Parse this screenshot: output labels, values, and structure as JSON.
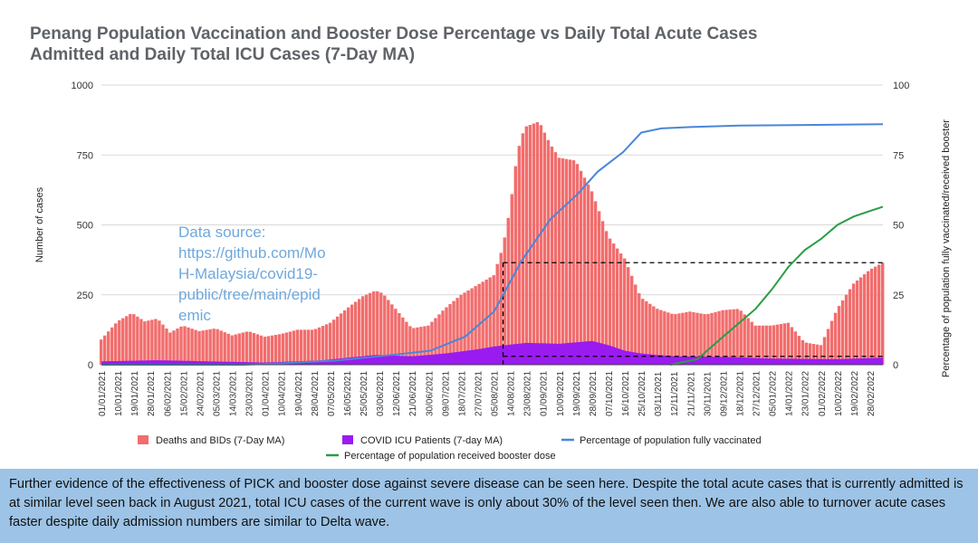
{
  "chart_data": {
    "type": "bar+line",
    "title_lines": [
      "Penang Population Vaccination and Booster Dose Percentage vs Daily Total Acute Cases",
      "Admitted and Daily Total ICU Cases (7-Day MA)"
    ],
    "ylabel_left": "Number of cases",
    "ylabel_right": "Percentage of population fully vaccinated/received booster",
    "ylim_left": [
      0,
      1000
    ],
    "ylim_right": [
      0,
      100
    ],
    "yticks_left": [
      "0",
      "250",
      "500",
      "750",
      "1000"
    ],
    "yticks_right": [
      "0",
      "25",
      "50",
      "75",
      "100"
    ],
    "x_start": "2021-01-01",
    "x_end": "2022-03-07",
    "xtick_labels": [
      "01/01/2021",
      "10/01/2021",
      "19/01/2021",
      "28/01/2021",
      "06/02/2021",
      "15/02/2021",
      "24/02/2021",
      "05/03/2021",
      "14/03/2021",
      "23/03/2021",
      "01/04/2021",
      "10/04/2021",
      "19/04/2021",
      "28/04/2021",
      "07/05/2021",
      "16/05/2021",
      "25/05/2021",
      "03/06/2021",
      "12/06/2021",
      "21/06/2021",
      "30/06/2021",
      "09/07/2021",
      "18/07/2021",
      "27/07/2021",
      "05/08/2021",
      "14/08/2021",
      "23/08/2021",
      "01/09/2021",
      "10/09/2021",
      "19/09/2021",
      "28/09/2021",
      "07/10/2021",
      "16/10/2021",
      "25/10/2021",
      "03/11/2021",
      "12/11/2021",
      "21/11/2021",
      "30/11/2021",
      "09/12/2021",
      "18/12/2021",
      "27/12/2021",
      "05/01/2022",
      "14/01/2022",
      "23/01/2022",
      "01/02/2022",
      "10/02/2022",
      "19/02/2022",
      "28/02/2022"
    ],
    "series": [
      {
        "name": "Deaths and BIDs (7-Day MA)",
        "kind": "bar",
        "axis": "left",
        "color": "#f26d6d",
        "points": [
          [
            "2021-01-01",
            90
          ],
          [
            "2021-01-10",
            155
          ],
          [
            "2021-01-18",
            185
          ],
          [
            "2021-01-25",
            155
          ],
          [
            "2021-02-01",
            165
          ],
          [
            "2021-02-08",
            115
          ],
          [
            "2021-02-15",
            140
          ],
          [
            "2021-02-24",
            120
          ],
          [
            "2021-03-05",
            130
          ],
          [
            "2021-03-14",
            105
          ],
          [
            "2021-03-23",
            120
          ],
          [
            "2021-04-01",
            100
          ],
          [
            "2021-04-10",
            110
          ],
          [
            "2021-04-19",
            125
          ],
          [
            "2021-04-28",
            125
          ],
          [
            "2021-05-07",
            150
          ],
          [
            "2021-05-16",
            200
          ],
          [
            "2021-05-25",
            245
          ],
          [
            "2021-06-01",
            265
          ],
          [
            "2021-06-05",
            255
          ],
          [
            "2021-06-12",
            200
          ],
          [
            "2021-06-21",
            130
          ],
          [
            "2021-06-30",
            140
          ],
          [
            "2021-07-09",
            200
          ],
          [
            "2021-07-18",
            250
          ],
          [
            "2021-07-27",
            285
          ],
          [
            "2021-08-05",
            320
          ],
          [
            "2021-08-10",
            420
          ],
          [
            "2021-08-14",
            560
          ],
          [
            "2021-08-18",
            760
          ],
          [
            "2021-08-22",
            850
          ],
          [
            "2021-08-30",
            870
          ],
          [
            "2021-09-05",
            790
          ],
          [
            "2021-09-10",
            740
          ],
          [
            "2021-09-19",
            730
          ],
          [
            "2021-09-28",
            620
          ],
          [
            "2021-10-07",
            460
          ],
          [
            "2021-10-16",
            380
          ],
          [
            "2021-10-25",
            240
          ],
          [
            "2021-11-03",
            200
          ],
          [
            "2021-11-12",
            180
          ],
          [
            "2021-11-21",
            190
          ],
          [
            "2021-11-30",
            180
          ],
          [
            "2021-12-09",
            195
          ],
          [
            "2021-12-18",
            200
          ],
          [
            "2021-12-27",
            140
          ],
          [
            "2022-01-05",
            140
          ],
          [
            "2022-01-14",
            150
          ],
          [
            "2022-01-23",
            80
          ],
          [
            "2022-02-01",
            70
          ],
          [
            "2022-02-10",
            200
          ],
          [
            "2022-02-19",
            290
          ],
          [
            "2022-02-28",
            340
          ],
          [
            "2022-03-07",
            365
          ]
        ]
      },
      {
        "name": "COVID ICU Patients (7-day MA)",
        "kind": "area",
        "axis": "left",
        "color": "#9a1bf0",
        "points": [
          [
            "2021-01-01",
            12
          ],
          [
            "2021-02-01",
            16
          ],
          [
            "2021-03-01",
            12
          ],
          [
            "2021-04-01",
            8
          ],
          [
            "2021-05-01",
            15
          ],
          [
            "2021-06-01",
            35
          ],
          [
            "2021-06-21",
            30
          ],
          [
            "2021-07-09",
            40
          ],
          [
            "2021-07-27",
            55
          ],
          [
            "2021-08-05",
            65
          ],
          [
            "2021-08-14",
            72
          ],
          [
            "2021-08-23",
            78
          ],
          [
            "2021-09-10",
            75
          ],
          [
            "2021-09-28",
            85
          ],
          [
            "2021-10-07",
            70
          ],
          [
            "2021-10-16",
            50
          ],
          [
            "2021-10-25",
            40
          ],
          [
            "2021-11-12",
            30
          ],
          [
            "2021-12-09",
            28
          ],
          [
            "2022-01-05",
            22
          ],
          [
            "2022-02-10",
            20
          ],
          [
            "2022-03-07",
            25
          ]
        ]
      },
      {
        "name": "Percentage of population fully vaccinated",
        "kind": "line",
        "axis": "right",
        "color": "#4a86d8",
        "points": [
          [
            "2021-01-01",
            0
          ],
          [
            "2021-03-20",
            0
          ],
          [
            "2021-04-10",
            0.5
          ],
          [
            "2021-05-10",
            1.5
          ],
          [
            "2021-06-10",
            3.5
          ],
          [
            "2021-07-01",
            5
          ],
          [
            "2021-07-20",
            10
          ],
          [
            "2021-08-05",
            19
          ],
          [
            "2021-08-20",
            37
          ],
          [
            "2021-09-05",
            52
          ],
          [
            "2021-09-20",
            61
          ],
          [
            "2021-10-01",
            69
          ],
          [
            "2021-10-15",
            76
          ],
          [
            "2021-10-25",
            83
          ],
          [
            "2021-11-05",
            84.5
          ],
          [
            "2021-11-21",
            85
          ],
          [
            "2021-12-18",
            85.5
          ],
          [
            "2022-03-07",
            86
          ]
        ]
      },
      {
        "name": "Percentage of population received booster dose",
        "kind": "line",
        "axis": "right",
        "color": "#2a9d45",
        "points": [
          [
            "2021-11-10",
            0
          ],
          [
            "2021-11-25",
            2
          ],
          [
            "2021-12-09",
            10
          ],
          [
            "2021-12-18",
            15
          ],
          [
            "2021-12-27",
            20
          ],
          [
            "2022-01-05",
            27
          ],
          [
            "2022-01-14",
            35
          ],
          [
            "2022-01-23",
            41
          ],
          [
            "2022-02-01",
            45
          ],
          [
            "2022-02-10",
            50
          ],
          [
            "2022-02-19",
            53
          ],
          [
            "2022-02-28",
            55
          ],
          [
            "2022-03-07",
            56.5
          ]
        ]
      }
    ],
    "reference_lines": {
      "acute_level": 365,
      "icu_level": 30,
      "start_date": "2021-08-10",
      "end_date": "2022-03-07"
    },
    "annotation": [
      "Data source:",
      "https://github.com/Mo",
      "H-Malaysia/covid19-",
      "public/tree/main/epid",
      "emic"
    ]
  },
  "caption": "Further evidence of the effectiveness of PICK and booster dose against severe disease can be seen here. Despite the total acute cases that is currently admitted is at similar level seen back in August 2021, total ICU cases of the current wave is only about 30% of the level seen then. We are also able to turnover acute cases faster despite daily admission numbers are similar to Delta wave."
}
